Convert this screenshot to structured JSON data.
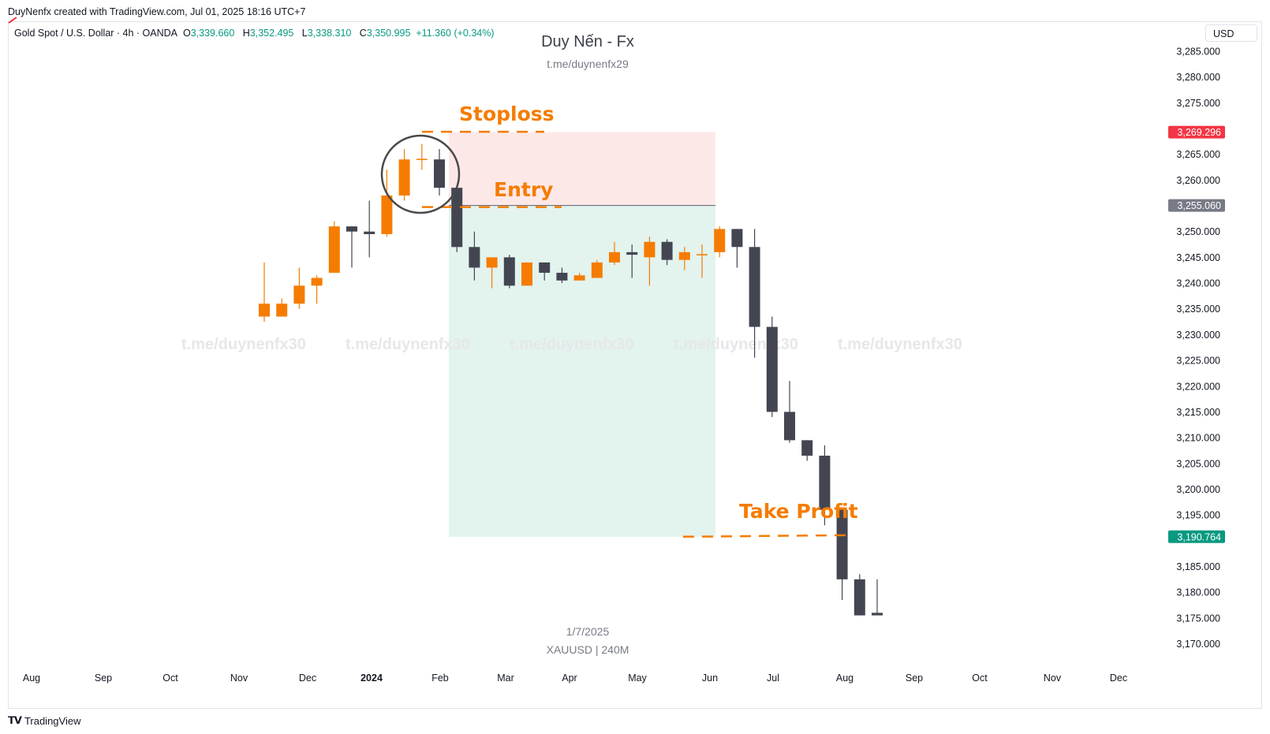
{
  "header": {
    "created_line": "DuyNenfx created with TradingView.com, Jul 01, 2025 18:16 UTC+7"
  },
  "legend": {
    "symbol": "Gold Spot / U.S. Dollar · 4h · OANDA",
    "o_label": "O",
    "o_value": "3,339.660",
    "h_label": "H",
    "h_value": "3,352.495",
    "l_label": "L",
    "l_value": "3,338.310",
    "c_label": "C",
    "c_value": "3,350.995",
    "change": "+11.360 (+0.34%)"
  },
  "currency_button": "USD",
  "center_title": "Duy Nến - Fx",
  "center_subtitle": "t.me/duynenfx29",
  "bottom_date": "1/7/2025",
  "bottom_symbol": "XAUUSD | 240M",
  "watermarks": [
    "t.me/duynenfx30",
    "t.me/duynenfx30",
    "t.me/duynenfx30",
    "t.me/duynenfx30",
    "t.me/duynenfx30"
  ],
  "brand": "TradingView",
  "colors": {
    "bull": "#f57c00",
    "bear": "#434651",
    "stop_zone": "#fde8e8",
    "target_zone": "#e3f3ee",
    "annotation": "#f57c00",
    "stop_tag": "#f23645",
    "entry_tag": "#787b86",
    "target_tag": "#089981",
    "legend_green": "#089981"
  },
  "chart_data": {
    "type": "candlestick",
    "y_axis": {
      "range": [
        3166,
        3288
      ],
      "ticks": [
        3170,
        3175,
        3180,
        3185,
        3195,
        3200,
        3205,
        3210,
        3215,
        3220,
        3225,
        3230,
        3235,
        3240,
        3245,
        3250,
        3260,
        3265,
        3275,
        3280,
        3285
      ],
      "tick_labels": [
        "3,170.000",
        "3,175.000",
        "3,180.000",
        "3,185.000",
        "3,195.000",
        "3,200.000",
        "3,205.000",
        "3,210.000",
        "3,215.000",
        "3,220.000",
        "3,225.000",
        "3,230.000",
        "3,235.000",
        "3,240.000",
        "3,245.000",
        "3,250.000",
        "3,260.000",
        "3,265.000",
        "3,275.000",
        "3,280.000",
        "3,285.000"
      ]
    },
    "x_axis": {
      "labels": [
        "Aug",
        "Sep",
        "Oct",
        "Nov",
        "Dec",
        "2024",
        "Feb",
        "Mar",
        "Apr",
        "May",
        "Jun",
        "Jul",
        "Aug",
        "Sep",
        "Oct",
        "Nov",
        "Dec"
      ],
      "bold_labels": [
        "2024"
      ]
    },
    "candles": [
      {
        "o": 3233.5,
        "h": 3244.0,
        "l": 3232.5,
        "c": 3236.0
      },
      {
        "o": 3233.5,
        "h": 3237.0,
        "l": 3233.5,
        "c": 3236.0
      },
      {
        "o": 3236.0,
        "h": 3243.0,
        "l": 3235.0,
        "c": 3239.5
      },
      {
        "o": 3239.5,
        "h": 3241.5,
        "l": 3236.0,
        "c": 3241.0
      },
      {
        "o": 3242.0,
        "h": 3252.0,
        "l": 3242.0,
        "c": 3251.0
      },
      {
        "o": 3251.0,
        "h": 3251.0,
        "l": 3243.0,
        "c": 3250.0
      },
      {
        "o": 3250.0,
        "h": 3256.0,
        "l": 3245.0,
        "c": 3249.5
      },
      {
        "o": 3249.5,
        "h": 3262.0,
        "l": 3249.0,
        "c": 3257.0
      },
      {
        "o": 3257.0,
        "h": 3266.0,
        "l": 3256.0,
        "c": 3264.0
      },
      {
        "o": 3264.0,
        "h": 3267.0,
        "l": 3262.0,
        "c": 3264.0
      },
      {
        "o": 3264.0,
        "h": 3266.0,
        "l": 3257.0,
        "c": 3258.5
      },
      {
        "o": 3258.5,
        "h": 3258.5,
        "l": 3246.0,
        "c": 3247.0
      },
      {
        "o": 3247.0,
        "h": 3250.0,
        "l": 3240.5,
        "c": 3243.0
      },
      {
        "o": 3243.0,
        "h": 3245.0,
        "l": 3239.0,
        "c": 3245.0
      },
      {
        "o": 3245.0,
        "h": 3245.5,
        "l": 3239.0,
        "c": 3239.5
      },
      {
        "o": 3239.5,
        "h": 3244.0,
        "l": 3239.5,
        "c": 3244.0
      },
      {
        "o": 3244.0,
        "h": 3244.0,
        "l": 3240.5,
        "c": 3242.0
      },
      {
        "o": 3242.0,
        "h": 3243.0,
        "l": 3240.0,
        "c": 3240.5
      },
      {
        "o": 3240.5,
        "h": 3242.0,
        "l": 3240.5,
        "c": 3241.5
      },
      {
        "o": 3241.0,
        "h": 3244.5,
        "l": 3241.0,
        "c": 3244.0
      },
      {
        "o": 3244.0,
        "h": 3248.0,
        "l": 3243.5,
        "c": 3246.0
      },
      {
        "o": 3246.0,
        "h": 3247.5,
        "l": 3241.0,
        "c": 3245.5
      },
      {
        "o": 3245.0,
        "h": 3249.0,
        "l": 3239.5,
        "c": 3248.0
      },
      {
        "o": 3248.0,
        "h": 3248.5,
        "l": 3243.5,
        "c": 3244.5
      },
      {
        "o": 3244.5,
        "h": 3247.0,
        "l": 3242.5,
        "c": 3246.0
      },
      {
        "o": 3245.5,
        "h": 3247.5,
        "l": 3241.0,
        "c": 3245.5
      },
      {
        "o": 3246.0,
        "h": 3251.0,
        "l": 3245.0,
        "c": 3250.5
      },
      {
        "o": 3250.5,
        "h": 3250.5,
        "l": 3243.0,
        "c": 3247.0
      },
      {
        "o": 3247.0,
        "h": 3250.5,
        "l": 3225.5,
        "c": 3231.5
      },
      {
        "o": 3231.5,
        "h": 3233.5,
        "l": 3214.0,
        "c": 3215.0
      },
      {
        "o": 3215.0,
        "h": 3221.0,
        "l": 3209.0,
        "c": 3209.5
      },
      {
        "o": 3209.5,
        "h": 3209.5,
        "l": 3205.5,
        "c": 3206.5
      },
      {
        "o": 3206.5,
        "h": 3208.5,
        "l": 3193.0,
        "c": 3196.0
      },
      {
        "o": 3196.0,
        "h": 3196.0,
        "l": 3178.5,
        "c": 3182.5
      },
      {
        "o": 3182.5,
        "h": 3183.5,
        "l": 3175.5,
        "c": 3175.5
      },
      {
        "o": 3176.0,
        "h": 3182.5,
        "l": 3175.5,
        "c": 3175.5
      }
    ],
    "position": {
      "stop": 3269.296,
      "entry": 3255.06,
      "target": 3190.764,
      "stop_label": "3,269.296",
      "entry_label": "3,255.060",
      "target_label": "3,190.764"
    },
    "annotations": [
      "Stoploss",
      "Entry",
      "Take Profit"
    ]
  }
}
